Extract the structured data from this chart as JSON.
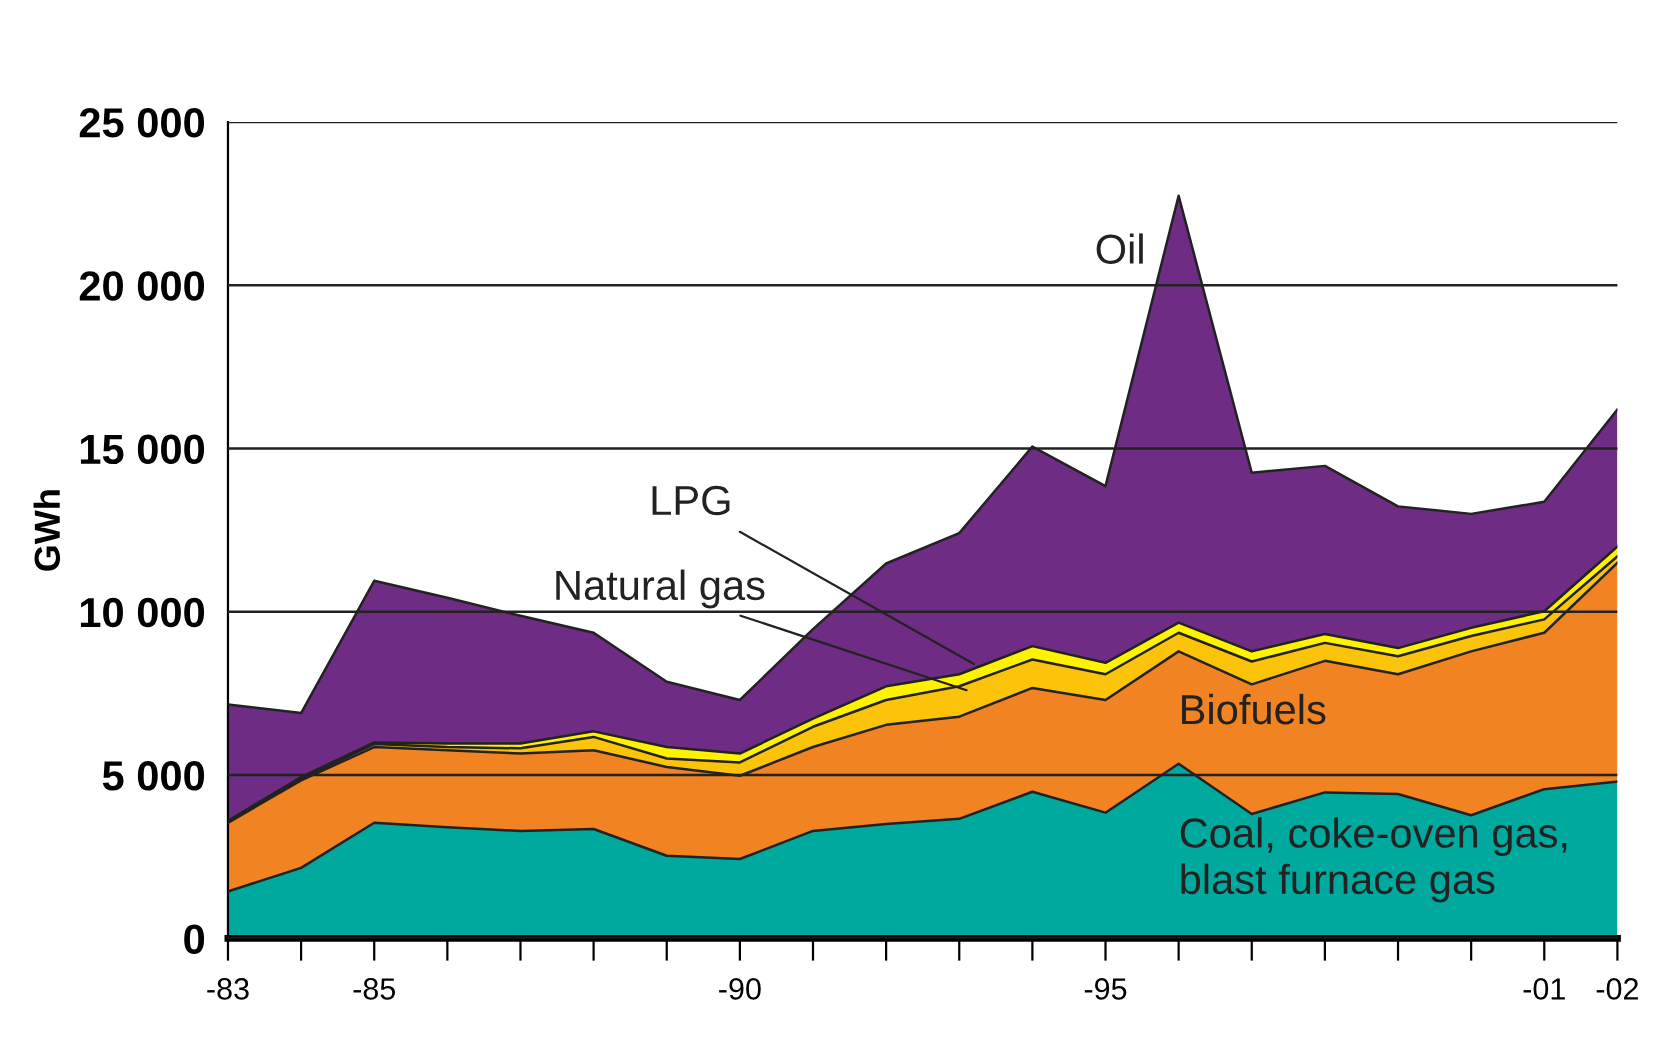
{
  "chart_data": {
    "type": "area",
    "stacked": true,
    "ylabel": "GWh",
    "categories": [
      "-83",
      null,
      "-85",
      null,
      null,
      null,
      null,
      "-90",
      null,
      null,
      null,
      null,
      "-95",
      null,
      null,
      null,
      null,
      null,
      "-01",
      "-02"
    ],
    "series": [
      {
        "name": "Coal, coke-oven gas,\nblast furnace gas",
        "color": "#00a99d",
        "values": [
          1440,
          2160,
          3540,
          3400,
          3290,
          3350,
          2530,
          2430,
          3290,
          3500,
          3660,
          4490,
          3850,
          5350,
          3810,
          4470,
          4420,
          3770,
          4570,
          4800
        ]
      },
      {
        "name": "Biofuels",
        "color": "#f28322",
        "values": [
          2100,
          2680,
          2320,
          2360,
          2370,
          2410,
          2720,
          2550,
          2570,
          3040,
          3130,
          3180,
          3450,
          3440,
          3970,
          4030,
          3670,
          5020,
          4790,
          6700
        ]
      },
      {
        "name": "Natural gas",
        "color": "#fcc30b",
        "values": [
          30,
          50,
          90,
          100,
          160,
          410,
          260,
          410,
          620,
          760,
          930,
          870,
          790,
          570,
          700,
          550,
          550,
          470,
          410,
          200
        ]
      },
      {
        "name": "LPG",
        "color": "#fff200",
        "values": [
          30,
          50,
          50,
          110,
          150,
          170,
          350,
          270,
          250,
          420,
          370,
          410,
          350,
          310,
          310,
          270,
          250,
          250,
          250,
          300
        ]
      },
      {
        "name": "Oil",
        "color": "#6e2c85",
        "values": [
          3560,
          1960,
          4950,
          4460,
          3910,
          3020,
          2000,
          1640,
          2740,
          3760,
          4320,
          6110,
          5410,
          13070,
          5470,
          5150,
          4340,
          3490,
          3350,
          4200
        ]
      }
    ],
    "ylim": [
      0,
      25000
    ],
    "yticks": [
      0,
      {
        "value": 5000,
        "label": "5 000"
      },
      {
        "value": 10000,
        "label": "10 000"
      },
      {
        "value": 15000,
        "label": "15 000"
      },
      {
        "value": 20000,
        "label": "20 000"
      },
      {
        "value": 25000,
        "label": "25 000"
      }
    ],
    "grid": "y",
    "legend": false
  }
}
